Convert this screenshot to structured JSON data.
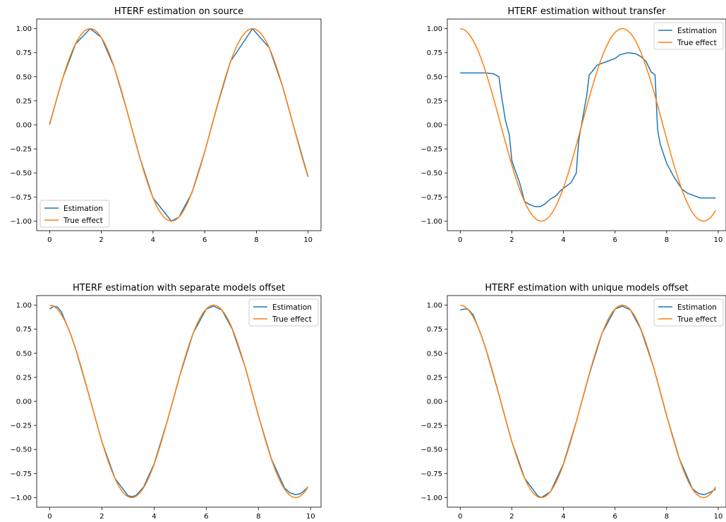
{
  "colors": {
    "estimation": "#1f77b4",
    "true_effect": "#ff7f0e"
  },
  "chart_data": [
    {
      "type": "line",
      "title": "HTERF estimation on source",
      "xlim": [
        -0.5,
        10.5
      ],
      "ylim": [
        -1.1,
        1.1
      ],
      "xticks": [
        0,
        2,
        4,
        6,
        8,
        10
      ],
      "yticks": [
        1.0,
        0.75,
        0.5,
        0.25,
        0.0,
        -0.25,
        -0.5,
        -0.75,
        -1.0
      ],
      "ytick_labels": [
        "1.00",
        "0.75",
        "0.50",
        "0.25",
        "0.00",
        "−0.25",
        "−0.50",
        "−0.75",
        "−1.00"
      ],
      "legend_position": "lower-left",
      "true_function": "sin",
      "x_range": [
        0,
        10
      ],
      "series": [
        {
          "name": "Estimation",
          "x": [
            0,
            0.5,
            1,
            1.57,
            2,
            2.5,
            3,
            3.5,
            4,
            4.71,
            5,
            5.5,
            6,
            6.5,
            7,
            7.85,
            8.5,
            9,
            9.5,
            10
          ],
          "y": [
            0.01,
            0.48,
            0.84,
            1.0,
            0.91,
            0.6,
            0.14,
            -0.35,
            -0.76,
            -1.0,
            -0.96,
            -0.71,
            -0.28,
            0.21,
            0.66,
            1.0,
            0.8,
            0.41,
            -0.07,
            -0.54
          ]
        },
        {
          "name": "True effect"
        }
      ]
    },
    {
      "type": "line",
      "title": "HTERF estimation without transfer",
      "xlim": [
        -0.5,
        10.3
      ],
      "ylim": [
        -1.1,
        1.1
      ],
      "xticks": [
        0,
        2,
        4,
        6,
        8,
        10
      ],
      "yticks": [
        1.0,
        0.75,
        0.5,
        0.25,
        0.0,
        -0.25,
        -0.5,
        -0.75,
        -1.0
      ],
      "ytick_labels": [
        "1.00",
        "0.75",
        "0.50",
        "0.25",
        "0.00",
        "−0.25",
        "−0.50",
        "−0.75",
        "−1.00"
      ],
      "legend_position": "upper-right",
      "true_function": "cos",
      "x_range": [
        0,
        9.9
      ],
      "series": [
        {
          "name": "Estimation",
          "x": [
            0,
            0.5,
            1,
            1.3,
            1.5,
            1.6,
            1.75,
            1.9,
            2.0,
            2.1,
            2.3,
            2.5,
            2.7,
            2.9,
            3.1,
            3.3,
            3.5,
            3.7,
            3.9,
            4.1,
            4.3,
            4.5,
            4.55,
            4.6,
            4.7,
            4.8,
            4.9,
            5.0,
            5.1,
            5.3,
            5.5,
            5.8,
            6.0,
            6.2,
            6.5,
            6.8,
            7.0,
            7.2,
            7.4,
            7.55,
            7.65,
            7.75,
            8.0,
            8.3,
            8.6,
            8.8,
            9.0,
            9.3,
            9.9
          ],
          "y": [
            0.54,
            0.54,
            0.54,
            0.53,
            0.5,
            0.3,
            0.05,
            -0.1,
            -0.37,
            -0.45,
            -0.6,
            -0.8,
            -0.83,
            -0.85,
            -0.85,
            -0.82,
            -0.77,
            -0.74,
            -0.68,
            -0.64,
            -0.6,
            -0.5,
            -0.3,
            -0.15,
            0.0,
            0.15,
            0.3,
            0.52,
            0.55,
            0.62,
            0.64,
            0.67,
            0.69,
            0.73,
            0.75,
            0.74,
            0.71,
            0.66,
            0.55,
            0.52,
            -0.05,
            -0.2,
            -0.4,
            -0.55,
            -0.67,
            -0.71,
            -0.73,
            -0.76,
            -0.76
          ]
        },
        {
          "name": "True effect"
        }
      ]
    },
    {
      "type": "line",
      "title": "HTERF estimation with separate models offset",
      "xlim": [
        -0.5,
        10.4
      ],
      "ylim": [
        -1.1,
        1.1
      ],
      "xticks": [
        0,
        2,
        4,
        6,
        8,
        10
      ],
      "yticks": [
        1.0,
        0.75,
        0.5,
        0.25,
        0.0,
        -0.25,
        -0.5,
        -0.75,
        -1.0
      ],
      "ytick_labels": [
        "1.00",
        "0.75",
        "0.50",
        "0.25",
        "0.00",
        "−0.25",
        "−0.50",
        "−0.75",
        "−1.00"
      ],
      "legend_position": "upper-right",
      "true_function": "cos",
      "x_range": [
        0,
        9.9
      ],
      "series": [
        {
          "name": "Estimation",
          "x": [
            0,
            0.15,
            0.3,
            0.45,
            0.6,
            0.8,
            1.0,
            1.5,
            2.0,
            2.5,
            3.0,
            3.14,
            3.3,
            3.6,
            4.0,
            4.5,
            5.0,
            5.5,
            6.0,
            6.28,
            6.6,
            7.0,
            7.5,
            8.0,
            8.5,
            9.0,
            9.2,
            9.42,
            9.6,
            9.75,
            9.9
          ],
          "y": [
            0.96,
            0.99,
            0.98,
            0.93,
            0.83,
            0.7,
            0.54,
            0.07,
            -0.42,
            -0.8,
            -0.98,
            -0.99,
            -0.98,
            -0.89,
            -0.65,
            -0.21,
            0.28,
            0.71,
            0.96,
            0.99,
            0.95,
            0.75,
            0.35,
            -0.15,
            -0.6,
            -0.9,
            -0.95,
            -0.97,
            -0.96,
            -0.93,
            -0.89
          ]
        },
        {
          "name": "True effect"
        }
      ]
    },
    {
      "type": "line",
      "title": "HTERF estimation with unique models offset",
      "xlim": [
        -0.5,
        10.3
      ],
      "ylim": [
        -1.1,
        1.1
      ],
      "xticks": [
        0,
        2,
        4,
        6,
        8,
        10
      ],
      "yticks": [
        1.0,
        0.75,
        0.5,
        0.25,
        0.0,
        -0.25,
        -0.5,
        -0.75,
        -1.0
      ],
      "ytick_labels": [
        "1.00",
        "0.75",
        "0.50",
        "0.25",
        "0.00",
        "−0.25",
        "−0.50",
        "−0.75",
        "−1.00"
      ],
      "legend_position": "upper-right",
      "true_function": "cos",
      "x_range": [
        0,
        9.9
      ],
      "series": [
        {
          "name": "Estimation",
          "x": [
            0,
            0.15,
            0.3,
            0.5,
            0.8,
            1.0,
            1.5,
            2.0,
            2.5,
            3.0,
            3.14,
            3.5,
            4.0,
            4.5,
            5.0,
            5.5,
            6.0,
            6.28,
            6.6,
            7.0,
            7.5,
            8.0,
            8.5,
            9.0,
            9.25,
            9.45,
            9.65,
            9.8,
            9.9
          ],
          "y": [
            0.95,
            0.96,
            0.96,
            0.9,
            0.7,
            0.54,
            0.07,
            -0.42,
            -0.8,
            -0.98,
            -1.0,
            -0.94,
            -0.65,
            -0.21,
            0.28,
            0.71,
            0.96,
            0.99,
            0.95,
            0.75,
            0.35,
            -0.15,
            -0.6,
            -0.91,
            -0.96,
            -0.97,
            -0.95,
            -0.93,
            -0.91
          ]
        },
        {
          "name": "True effect"
        }
      ]
    }
  ]
}
